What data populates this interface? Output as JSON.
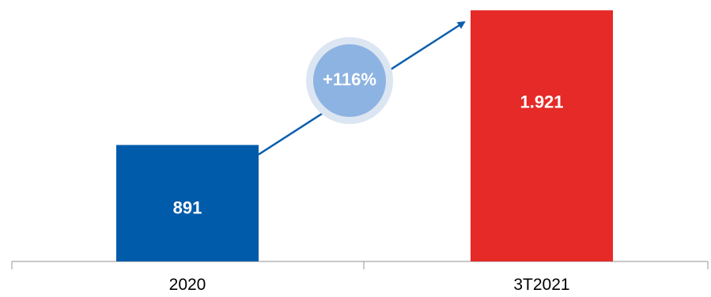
{
  "chart_data": {
    "type": "bar",
    "categories": [
      "2020",
      "3T2021"
    ],
    "values": [
      891,
      1921
    ],
    "value_labels": [
      "891",
      "1.921"
    ],
    "bar_colors": [
      "#005BAA",
      "#E52A27"
    ],
    "ylim": [
      0,
      2000
    ],
    "grid": false,
    "legend": "none",
    "annotation": {
      "text": "+116%",
      "fill": "#8DB3E2",
      "halo": "#DCE6F2",
      "arrow_color": "#0B5FAF"
    }
  }
}
